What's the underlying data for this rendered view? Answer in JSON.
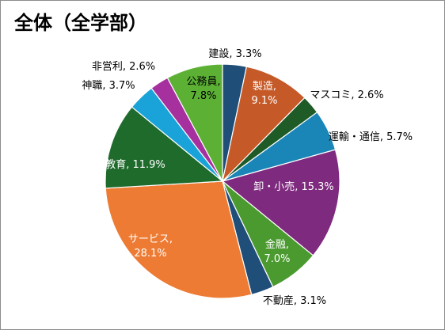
{
  "chart_data": {
    "type": "pie",
    "title": "全体（全学部）",
    "start_angle_deg": 90,
    "direction": "clockwise",
    "legend": "none",
    "slices": [
      {
        "label": "建設, 3.3%",
        "text": [
          "建設, 3.3%"
        ],
        "value": 3.3,
        "color": "#1f4e79"
      },
      {
        "label": "製造, 9.1%",
        "text": [
          "製造,",
          "9.1%"
        ],
        "value": 9.1,
        "color": "#c55a28"
      },
      {
        "label": "マスコミ, 2.6%",
        "text": [
          "マスコミ, 2.6%"
        ],
        "value": 2.6,
        "color": "#1e5b26"
      },
      {
        "label": "運輸・通信, 5.7%",
        "text": [
          "運輸・通信, 5.7%"
        ],
        "value": 5.7,
        "color": "#1a86b8"
      },
      {
        "label": "卸・小売, 15.3%",
        "text": [
          "卸・小売, 15.3%"
        ],
        "value": 15.3,
        "color": "#7e2a7e"
      },
      {
        "label": "金融, 7.0%",
        "text": [
          "金融,",
          "7.0%"
        ],
        "value": 7.0,
        "color": "#4a9a2f"
      },
      {
        "label": "不動産, 3.1%",
        "text": [
          "不動産, 3.1%"
        ],
        "value": 3.1,
        "color": "#1f4e79"
      },
      {
        "label": "サービス, 28.1%",
        "text": [
          "サービス,",
          "28.1%"
        ],
        "value": 28.1,
        "color": "#ed7b33"
      },
      {
        "label": "教育, 11.9%",
        "text": [
          "教育, 11.9%"
        ],
        "value": 11.9,
        "color": "#1e6b2c"
      },
      {
        "label": "神職, 3.7%",
        "text": [
          "神職, 3.7%"
        ],
        "value": 3.7,
        "color": "#1aa3d9"
      },
      {
        "label": "非営利, 2.6%",
        "text": [
          "非営利, 2.6%"
        ],
        "value": 2.6,
        "color": "#a5309e"
      },
      {
        "label": "公務員, 7.8%",
        "text": [
          "公務員,",
          "7.8%"
        ],
        "value": 7.8,
        "color": "#5cb135"
      }
    ]
  }
}
